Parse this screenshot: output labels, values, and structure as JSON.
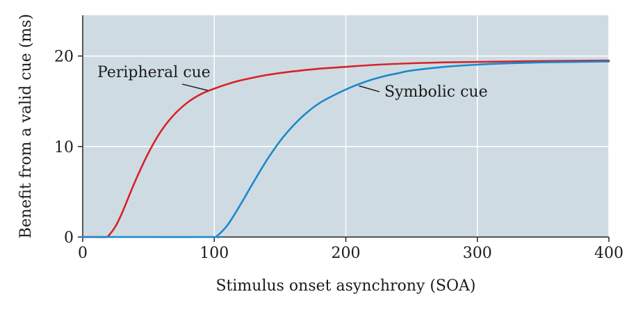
{
  "chart_data": {
    "type": "line",
    "title": "",
    "xlabel": "Stimulus onset asynchrony (SOA)",
    "ylabel": "Benefit from a valid cue (ms)",
    "xlim": [
      0,
      400
    ],
    "ylim": [
      0,
      24.5
    ],
    "x_ticks": [
      0,
      100,
      200,
      300,
      400
    ],
    "y_ticks": [
      0,
      10,
      20
    ],
    "grid": true,
    "background_color": "#cfdbe2",
    "series": [
      {
        "name": "Peripheral cue",
        "color": "#d7222a",
        "x": [
          0,
          10,
          18,
          20,
          25,
          30,
          40,
          50,
          60,
          70,
          80,
          90,
          100,
          110,
          120,
          140,
          160,
          180,
          200,
          225,
          250,
          275,
          300,
          325,
          350,
          375,
          400
        ],
        "y": [
          0,
          0,
          0,
          0.2,
          1.2,
          2.7,
          6.2,
          9.3,
          11.8,
          13.6,
          14.9,
          15.8,
          16.4,
          16.9,
          17.3,
          17.9,
          18.3,
          18.6,
          18.8,
          19.05,
          19.2,
          19.3,
          19.35,
          19.4,
          19.45,
          19.48,
          19.5
        ]
      },
      {
        "name": "Symbolic cue",
        "color": "#1a88cc",
        "x": [
          0,
          50,
          100,
          102,
          110,
          120,
          130,
          140,
          150,
          160,
          170,
          180,
          190,
          200,
          210,
          220,
          230,
          240,
          250,
          275,
          300,
          325,
          350,
          375,
          400
        ],
        "y": [
          0,
          0,
          0,
          0.1,
          1.3,
          3.6,
          6.1,
          8.5,
          10.6,
          12.3,
          13.7,
          14.8,
          15.6,
          16.3,
          16.9,
          17.4,
          17.8,
          18.1,
          18.4,
          18.8,
          19.05,
          19.2,
          19.3,
          19.35,
          19.4
        ]
      }
    ],
    "annotations": [
      {
        "text": "Peripheral cue",
        "series": 0,
        "x": 95,
        "y": 16.2
      },
      {
        "text": "Symbolic cue",
        "series": 1,
        "x": 210,
        "y": 16.7
      }
    ]
  }
}
